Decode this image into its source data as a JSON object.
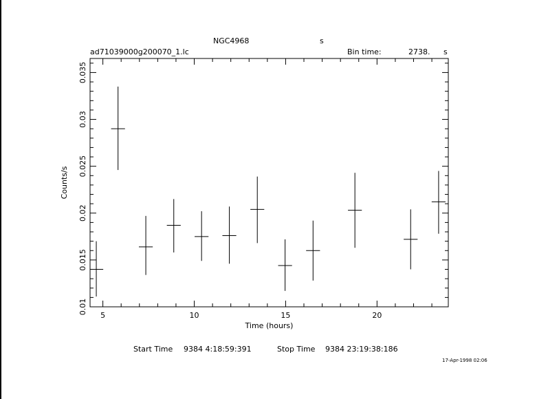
{
  "header": {
    "object": "NGC4968",
    "object_unit": "s",
    "filename": "ad71039000g200070_1.lc",
    "bin_time_label": "Bin time:",
    "bin_time_value": "2738.",
    "bin_time_unit": "s"
  },
  "footer": {
    "start_label": "Start Time",
    "start_value": "9384  4:18:59:391",
    "stop_label": "Stop Time",
    "stop_value": "9384 23:19:38:186"
  },
  "timestamp": "17-Apr-1998 02:06",
  "chart_data": {
    "type": "scatter",
    "xlabel": "Time (hours)",
    "ylabel": "Counts/s",
    "xlim": [
      4.3,
      23.9
    ],
    "ylim": [
      0.01,
      0.0365
    ],
    "xticks": [
      5,
      10,
      15,
      20
    ],
    "yticks": [
      0.01,
      0.015,
      0.02,
      0.025,
      0.03,
      0.035
    ],
    "grid": false,
    "points": [
      {
        "x": 4.64,
        "y": 0.014,
        "xerr": 0.38,
        "ylo": 0.0111,
        "yhi": 0.017
      },
      {
        "x": 5.83,
        "y": 0.029,
        "xerr": 0.38,
        "ylo": 0.0246,
        "yhi": 0.0335
      },
      {
        "x": 7.35,
        "y": 0.0164,
        "xerr": 0.38,
        "ylo": 0.0134,
        "yhi": 0.0197
      },
      {
        "x": 8.88,
        "y": 0.0187,
        "xerr": 0.38,
        "ylo": 0.0158,
        "yhi": 0.0215
      },
      {
        "x": 10.4,
        "y": 0.0175,
        "xerr": 0.38,
        "ylo": 0.0149,
        "yhi": 0.0202
      },
      {
        "x": 11.92,
        "y": 0.0176,
        "xerr": 0.38,
        "ylo": 0.0146,
        "yhi": 0.0207
      },
      {
        "x": 13.45,
        "y": 0.0204,
        "xerr": 0.38,
        "ylo": 0.0168,
        "yhi": 0.0239
      },
      {
        "x": 14.97,
        "y": 0.0144,
        "xerr": 0.38,
        "ylo": 0.0117,
        "yhi": 0.0172
      },
      {
        "x": 16.5,
        "y": 0.016,
        "xerr": 0.38,
        "ylo": 0.0128,
        "yhi": 0.0192
      },
      {
        "x": 18.79,
        "y": 0.0203,
        "xerr": 0.38,
        "ylo": 0.0163,
        "yhi": 0.0243
      },
      {
        "x": 21.84,
        "y": 0.0172,
        "xerr": 0.38,
        "ylo": 0.014,
        "yhi": 0.0204
      },
      {
        "x": 23.37,
        "y": 0.0212,
        "xerr": 0.38,
        "ylo": 0.0178,
        "yhi": 0.0245
      }
    ]
  }
}
